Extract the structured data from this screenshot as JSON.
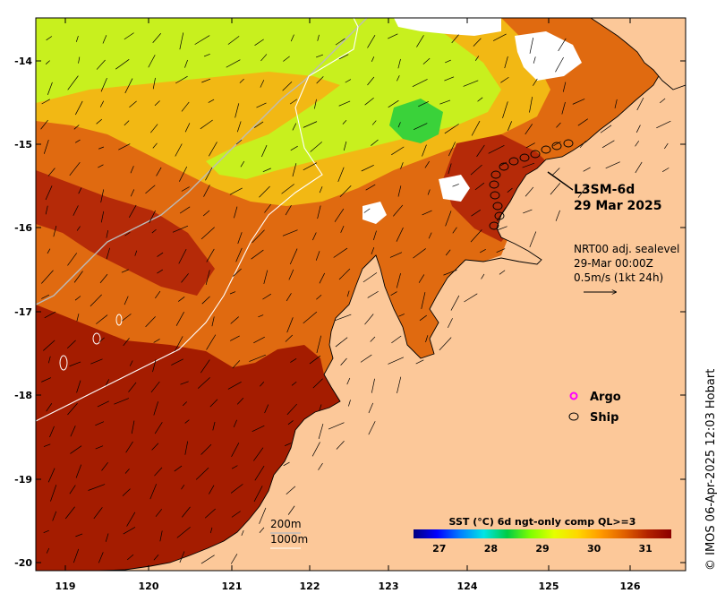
{
  "map": {
    "product_title": "L3SM-6d",
    "product_date": "29 Mar 2025",
    "current_info": [
      "NRT00 adj. sealevel",
      "29-Mar 00:00Z",
      "0.5m/s (1kt 24h)"
    ],
    "legend_items": [
      {
        "label": "Argo",
        "color": "#ff00ff"
      },
      {
        "label": "Ship",
        "color": "#000000"
      }
    ],
    "isobaths": [
      "200m",
      "1000m"
    ],
    "colorbar": {
      "title": "SST (°C) 6d ngt-only comp QL>=3",
      "ticks": [
        "27",
        "28",
        "29",
        "30",
        "31"
      ],
      "range": [
        26.5,
        31.5
      ]
    },
    "credit": "© IMOS 06-Apr-2025 12:03 Hobart",
    "lat_labels": [
      "-14",
      "-15",
      "-16",
      "-17",
      "-18",
      "-19",
      "-20"
    ],
    "lon_labels": [
      "119",
      "120",
      "121",
      "122",
      "123",
      "124",
      "125",
      "126"
    ],
    "colors": {
      "land": "#fcc899",
      "colorbar_stops": [
        "#00007f",
        "#0000ff",
        "#007fff",
        "#00e5e5",
        "#00cc44",
        "#7fff00",
        "#e5ff00",
        "#ffd700",
        "#ff9900",
        "#e06000",
        "#b22200",
        "#8b0000"
      ]
    }
  }
}
